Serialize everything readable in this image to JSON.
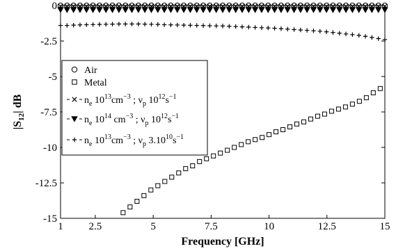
{
  "chart_data": {
    "type": "scatter",
    "title": "",
    "xlabel": "Frequency [GHz]",
    "ylabel_main": "|S",
    "ylabel_sub": "12",
    "ylabel_rest": "| dB",
    "xlim": [
      1,
      15
    ],
    "ylim": [
      -15,
      0
    ],
    "xticks": [
      1,
      2.5,
      5,
      7.5,
      10,
      12.5,
      15
    ],
    "xtick_labels": [
      "1",
      "2.5",
      "5",
      "7.5",
      "10",
      "12.5",
      "15"
    ],
    "yticks": [
      0,
      -2.5,
      -5,
      -7.5,
      -10,
      -12.5,
      -15
    ],
    "ytick_labels": [
      "0",
      "-2.5",
      "-5",
      "-7.5",
      "-10",
      "-12.5",
      "-15"
    ],
    "grid": false,
    "legend_position": "upper-left inside plot",
    "series": [
      {
        "name": "Air",
        "marker": "circle",
        "x": [
          1,
          1.28,
          1.56,
          1.84,
          2.12,
          2.4,
          2.68,
          2.96,
          3.24,
          3.52,
          3.8,
          4.08,
          4.36,
          4.64,
          4.92,
          5.2,
          5.48,
          5.76,
          6.04,
          6.32,
          6.6,
          6.88,
          7.16,
          7.44,
          7.72,
          8,
          8.28,
          8.56,
          8.84,
          9.12,
          9.4,
          9.68,
          9.96,
          10.24,
          10.52,
          10.8,
          11.08,
          11.36,
          11.64,
          11.92,
          12.2,
          12.48,
          12.76,
          13.04,
          13.32,
          13.6,
          13.88,
          14.16,
          14.44,
          14.72,
          15
        ],
        "y": [
          0,
          0,
          0,
          0,
          0,
          0,
          0,
          0,
          0,
          0,
          0,
          0,
          0,
          0,
          0,
          0,
          0,
          0,
          0,
          0,
          0,
          0,
          0,
          0,
          0,
          0,
          0,
          0,
          0,
          0,
          0,
          0,
          0,
          0,
          0,
          0,
          0,
          0,
          0,
          0,
          0,
          0,
          0,
          0,
          0,
          0,
          0,
          0,
          0,
          0,
          0
        ]
      },
      {
        "name": "Metal",
        "marker": "square",
        "x": [
          3.7,
          4.0,
          4.3,
          4.6,
          4.9,
          5.2,
          5.5,
          5.8,
          6.1,
          6.4,
          6.7,
          7.0,
          7.3,
          7.6,
          7.9,
          8.2,
          8.5,
          8.8,
          9.1,
          9.4,
          9.7,
          10.0,
          10.3,
          10.6,
          10.9,
          11.2,
          11.5,
          11.8,
          12.1,
          12.4,
          12.7,
          13.0,
          13.3,
          13.6,
          13.9,
          14.2,
          14.5,
          14.8
        ],
        "y": [
          -14.6,
          -14.2,
          -13.8,
          -13.4,
          -13.0,
          -12.7,
          -12.4,
          -12.1,
          -11.8,
          -11.5,
          -11.3,
          -11.0,
          -10.8,
          -10.6,
          -10.4,
          -10.2,
          -10.0,
          -9.8,
          -9.6,
          -9.45,
          -9.3,
          -9.1,
          -8.9,
          -8.75,
          -8.55,
          -8.35,
          -8.2,
          -8.0,
          -7.8,
          -7.65,
          -7.45,
          -7.3,
          -7.15,
          -6.95,
          -6.75,
          -6.5,
          -6.15,
          -5.85
        ]
      },
      {
        "name": "n_e 10^13 cm^-3 ; ν_p 10^12 s^-1",
        "marker": "x",
        "x": [
          1,
          1.28,
          1.56,
          1.84,
          2.12,
          2.4,
          2.68,
          2.96,
          3.24,
          3.52,
          3.8,
          4.08,
          4.36,
          4.64,
          4.92,
          5.2,
          5.48,
          5.76,
          6.04,
          6.32,
          6.6,
          6.88,
          7.16,
          7.44,
          7.72,
          8,
          8.28,
          8.56,
          8.84,
          9.12,
          9.4,
          9.68,
          9.96,
          10.24,
          10.52,
          10.8,
          11.08,
          11.36,
          11.64,
          11.92,
          12.2,
          12.48,
          12.76,
          13.04,
          13.32,
          13.6,
          13.88,
          14.16,
          14.44,
          14.72,
          15
        ],
        "y": [
          -0.05,
          -0.05,
          -0.05,
          -0.05,
          -0.05,
          -0.05,
          -0.05,
          -0.05,
          -0.05,
          -0.05,
          -0.05,
          -0.05,
          -0.05,
          -0.05,
          -0.05,
          -0.05,
          -0.05,
          -0.05,
          -0.05,
          -0.05,
          -0.05,
          -0.05,
          -0.05,
          -0.05,
          -0.05,
          -0.05,
          -0.05,
          -0.05,
          -0.05,
          -0.05,
          -0.05,
          -0.05,
          -0.05,
          -0.05,
          -0.05,
          -0.05,
          -0.05,
          -0.05,
          -0.05,
          -0.05,
          -0.05,
          -0.05,
          -0.05,
          -0.05,
          -0.05,
          -0.05,
          -0.05,
          -0.05,
          -0.05,
          -0.05,
          -0.05
        ]
      },
      {
        "name": "n_e 10^14 cm^-3 ; ν_p 10^12 s^-1",
        "marker": "triangle-down",
        "x": [
          1,
          1.28,
          1.56,
          1.84,
          2.12,
          2.4,
          2.68,
          2.96,
          3.24,
          3.52,
          3.8,
          4.08,
          4.36,
          4.64,
          4.92,
          5.2,
          5.48,
          5.76,
          6.04,
          6.32,
          6.6,
          6.88,
          7.16,
          7.44,
          7.72,
          8,
          8.28,
          8.56,
          8.84,
          9.12,
          9.4,
          9.68,
          9.96,
          10.24,
          10.52,
          10.8,
          11.08,
          11.36,
          11.64,
          11.92,
          12.2,
          12.48,
          12.76,
          13.04,
          13.32,
          13.6,
          13.88,
          14.16,
          14.44,
          14.72,
          15
        ],
        "y": [
          -0.3,
          -0.3,
          -0.3,
          -0.3,
          -0.3,
          -0.3,
          -0.3,
          -0.3,
          -0.3,
          -0.3,
          -0.3,
          -0.3,
          -0.3,
          -0.3,
          -0.3,
          -0.3,
          -0.3,
          -0.3,
          -0.3,
          -0.3,
          -0.3,
          -0.3,
          -0.3,
          -0.3,
          -0.3,
          -0.3,
          -0.3,
          -0.3,
          -0.3,
          -0.3,
          -0.3,
          -0.3,
          -0.3,
          -0.3,
          -0.3,
          -0.3,
          -0.3,
          -0.3,
          -0.3,
          -0.3,
          -0.3,
          -0.3,
          -0.3,
          -0.3,
          -0.3,
          -0.3,
          -0.3,
          -0.3,
          -0.3,
          -0.3,
          -0.3
        ]
      },
      {
        "name": "n_e 10^13 cm^-3 ; ν_p 3.10^10 s^-1",
        "marker": "plus",
        "x": [
          1,
          1.28,
          1.56,
          1.84,
          2.12,
          2.4,
          2.68,
          2.96,
          3.24,
          3.52,
          3.8,
          4.08,
          4.36,
          4.64,
          4.92,
          5.2,
          5.48,
          5.76,
          6.04,
          6.32,
          6.6,
          6.88,
          7.16,
          7.44,
          7.72,
          8,
          8.28,
          8.56,
          8.84,
          9.12,
          9.4,
          9.68,
          9.96,
          10.24,
          10.52,
          10.8,
          11.08,
          11.36,
          11.64,
          11.92,
          12.2,
          12.48,
          12.76,
          13.04,
          13.32,
          13.6,
          13.88,
          14.16,
          14.44,
          14.72,
          15
        ],
        "y": [
          -1.4,
          -1.4,
          -1.38,
          -1.36,
          -1.35,
          -1.34,
          -1.33,
          -1.32,
          -1.31,
          -1.3,
          -1.3,
          -1.3,
          -1.3,
          -1.31,
          -1.32,
          -1.33,
          -1.35,
          -1.36,
          -1.37,
          -1.38,
          -1.39,
          -1.4,
          -1.41,
          -1.42,
          -1.43,
          -1.44,
          -1.46,
          -1.48,
          -1.5,
          -1.52,
          -1.54,
          -1.56,
          -1.58,
          -1.6,
          -1.63,
          -1.66,
          -1.69,
          -1.72,
          -1.75,
          -1.78,
          -1.81,
          -1.85,
          -1.9,
          -1.95,
          -2.0,
          -2.05,
          -2.1,
          -2.17,
          -2.25,
          -2.33,
          -2.4
        ]
      }
    ],
    "legend": [
      {
        "marker": "circle",
        "style": "none",
        "parts": [
          {
            "t": "Air"
          }
        ]
      },
      {
        "marker": "square",
        "style": "none",
        "parts": [
          {
            "t": "Metal"
          }
        ]
      },
      {
        "marker": "x",
        "style": "dash",
        "parts": [
          {
            "t": "n"
          },
          {
            "t": "e",
            "sub": true
          },
          {
            "t": " 10"
          },
          {
            "t": "13",
            "sup": true
          },
          {
            "t": "cm"
          },
          {
            "t": "−3",
            "sup": true
          },
          {
            "t": " ; ν"
          },
          {
            "t": "p",
            "sub": true
          },
          {
            "t": " 10"
          },
          {
            "t": "12",
            "sup": true
          },
          {
            "t": "s"
          },
          {
            "t": "−1",
            "sup": true
          }
        ]
      },
      {
        "marker": "triangle-down",
        "style": "dash",
        "parts": [
          {
            "t": "n"
          },
          {
            "t": "e",
            "sub": true
          },
          {
            "t": " 10"
          },
          {
            "t": "14",
            "sup": true
          },
          {
            "t": " cm"
          },
          {
            "t": "−3",
            "sup": true
          },
          {
            "t": " ; ν"
          },
          {
            "t": "p",
            "sub": true
          },
          {
            "t": " 10"
          },
          {
            "t": "12",
            "sup": true
          },
          {
            "t": "s"
          },
          {
            "t": "−1",
            "sup": true
          }
        ]
      },
      {
        "marker": "plus",
        "style": "dash",
        "parts": [
          {
            "t": "n"
          },
          {
            "t": "e",
            "sub": true
          },
          {
            "t": " 10"
          },
          {
            "t": "13",
            "sup": true
          },
          {
            "t": "cm"
          },
          {
            "t": "−3",
            "sup": true
          },
          {
            "t": " ; ν"
          },
          {
            "t": "p",
            "sub": true
          },
          {
            "t": " 3.10"
          },
          {
            "t": "10",
            "sup": true
          },
          {
            "t": "s"
          },
          {
            "t": "−1",
            "sup": true
          }
        ]
      }
    ]
  }
}
